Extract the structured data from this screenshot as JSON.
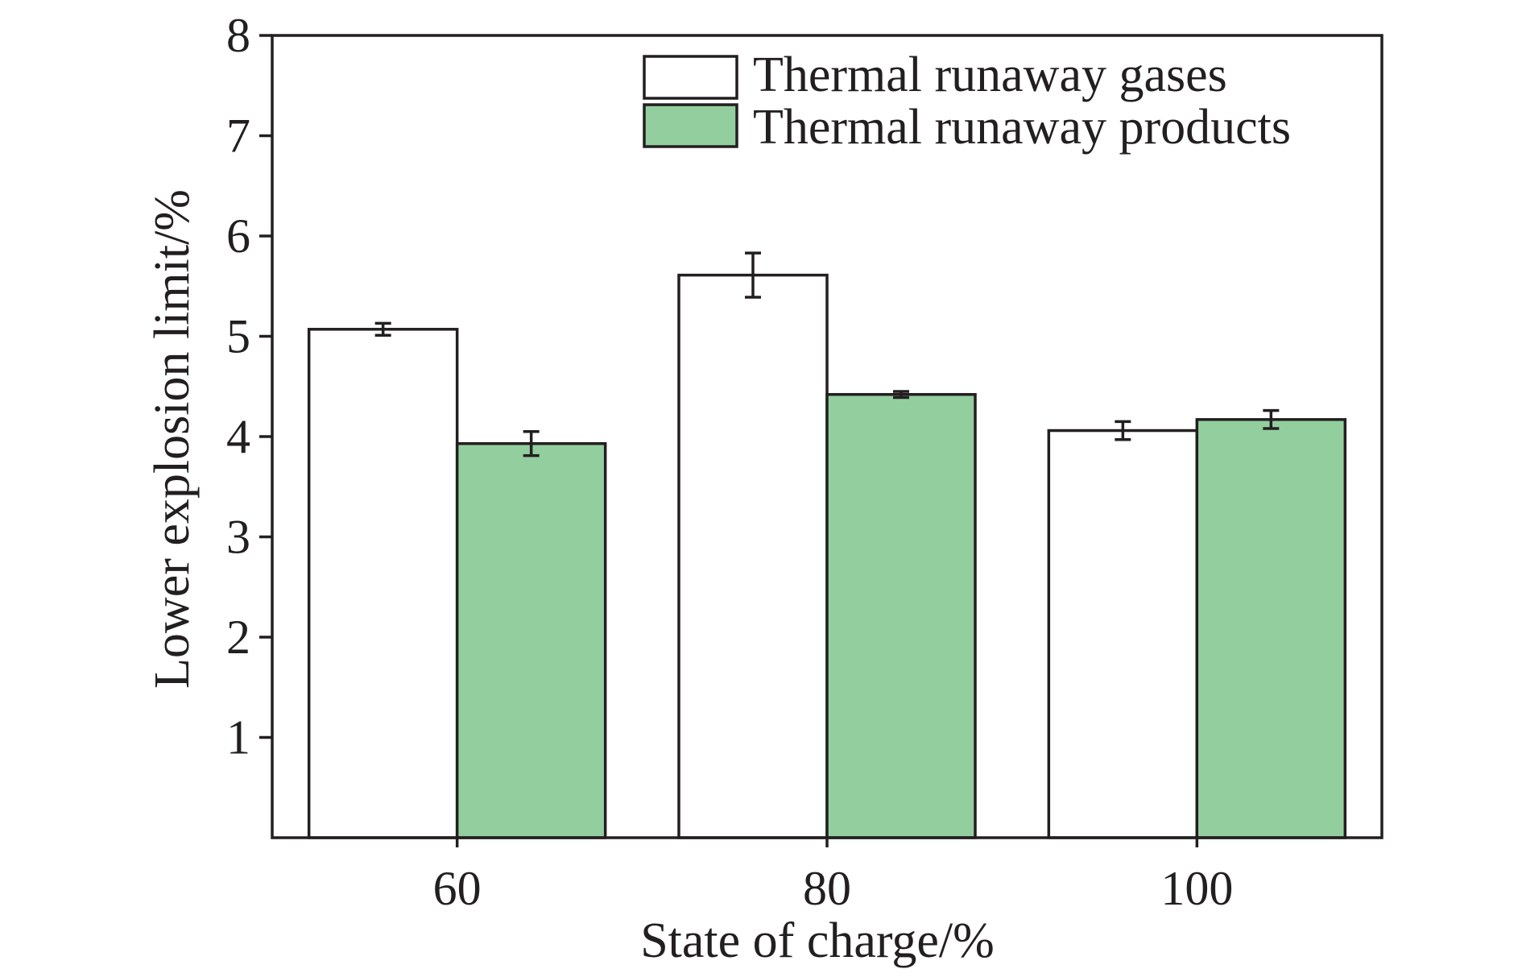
{
  "chart_data": {
    "type": "bar",
    "xlabel": "State of charge/%",
    "ylabel": "Lower explosion limit/%",
    "categories": [
      "60",
      "80",
      "100"
    ],
    "ylim": [
      0,
      8
    ],
    "yticks": [
      1,
      2,
      3,
      4,
      5,
      6,
      7,
      8
    ],
    "grid": false,
    "legend_position": "top-right",
    "series": [
      {
        "name": "Thermal runaway gases",
        "color": "#ffffff",
        "values": [
          5.07,
          5.61,
          4.06
        ],
        "errors": [
          0.06,
          0.22,
          0.09
        ]
      },
      {
        "name": "Thermal runaway products",
        "color": "#93cf9e",
        "values": [
          3.93,
          4.42,
          4.17
        ],
        "errors": [
          0.12,
          0.03,
          0.09
        ]
      }
    ]
  }
}
